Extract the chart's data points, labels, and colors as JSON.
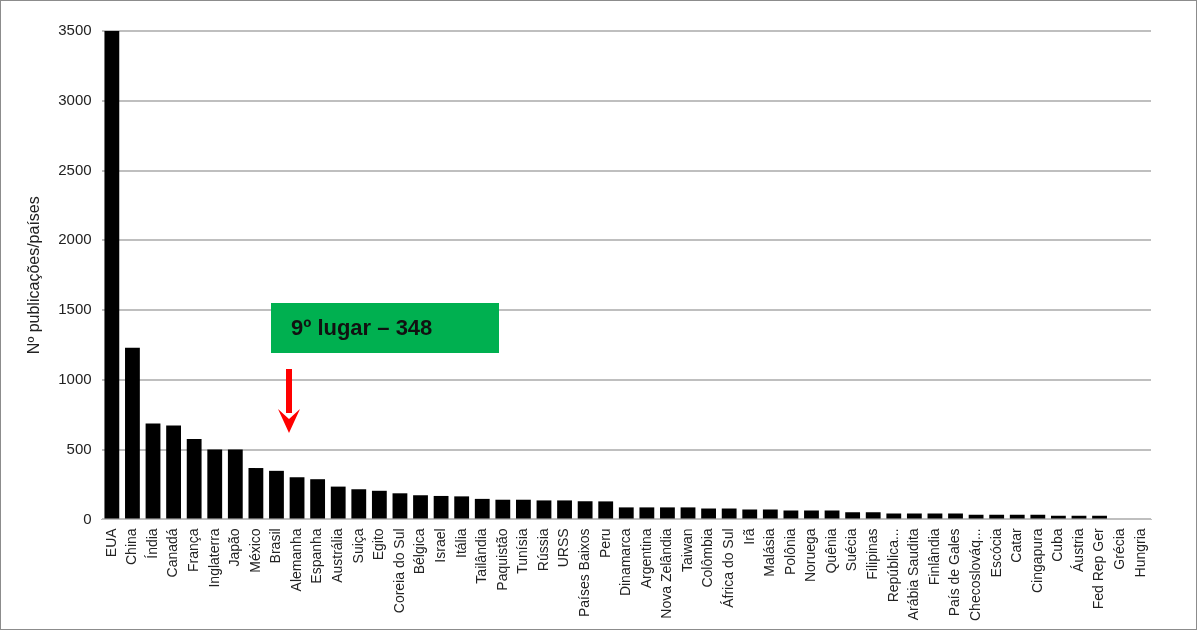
{
  "chart_data": {
    "type": "bar",
    "ylabel": "Nº publicações/países",
    "categories": [
      "EUA",
      "China",
      "Índia",
      "Canadá",
      "França",
      "Inglaterra",
      "Japão",
      "México",
      "Brasil",
      "Alemanha",
      "Espanha",
      "Austrália",
      "Suiça",
      "Egito",
      "Coreia do Sul",
      "Bélgica",
      "Israel",
      "Itália",
      "Tailândia",
      "Paquistão",
      "Tunísia",
      "Rússia",
      "URSS",
      "Países Baixos",
      "Peru",
      "Dinamarca",
      "Argentina",
      "Nova Zelândia",
      "Taiwan",
      "Colômbia",
      "África do Sul",
      "Irã",
      "Malásia",
      "Polônia",
      "Noruega",
      "Quênia",
      "Suécia",
      "Filipinas",
      "República...",
      "Arábia Saudita",
      "Finlândia",
      "País de Gales",
      "Checoslováq...",
      "Escócia",
      "Catar",
      "Cingapura",
      "Cuba",
      "Áustria",
      "Fed Rep Ger",
      "Grécia",
      "Hungria"
    ],
    "values": [
      3500,
      1230,
      688,
      672,
      576,
      500,
      500,
      368,
      348,
      302,
      288,
      235,
      216,
      205,
      187,
      173,
      168,
      165,
      147,
      141,
      141,
      136,
      136,
      130,
      129,
      86,
      86,
      86,
      86,
      78,
      78,
      71,
      71,
      63,
      63,
      63,
      51,
      51,
      43,
      43,
      43,
      43,
      34,
      34,
      34,
      34,
      26,
      26,
      26,
      0,
      0
    ],
    "color": "#000000",
    "ylim": [
      0,
      3500
    ],
    "yticks": [
      0,
      500,
      1000,
      1500,
      2000,
      2500,
      3000,
      3500
    ],
    "grid": "y",
    "annotations": [
      "9º lugar – 348"
    ]
  }
}
